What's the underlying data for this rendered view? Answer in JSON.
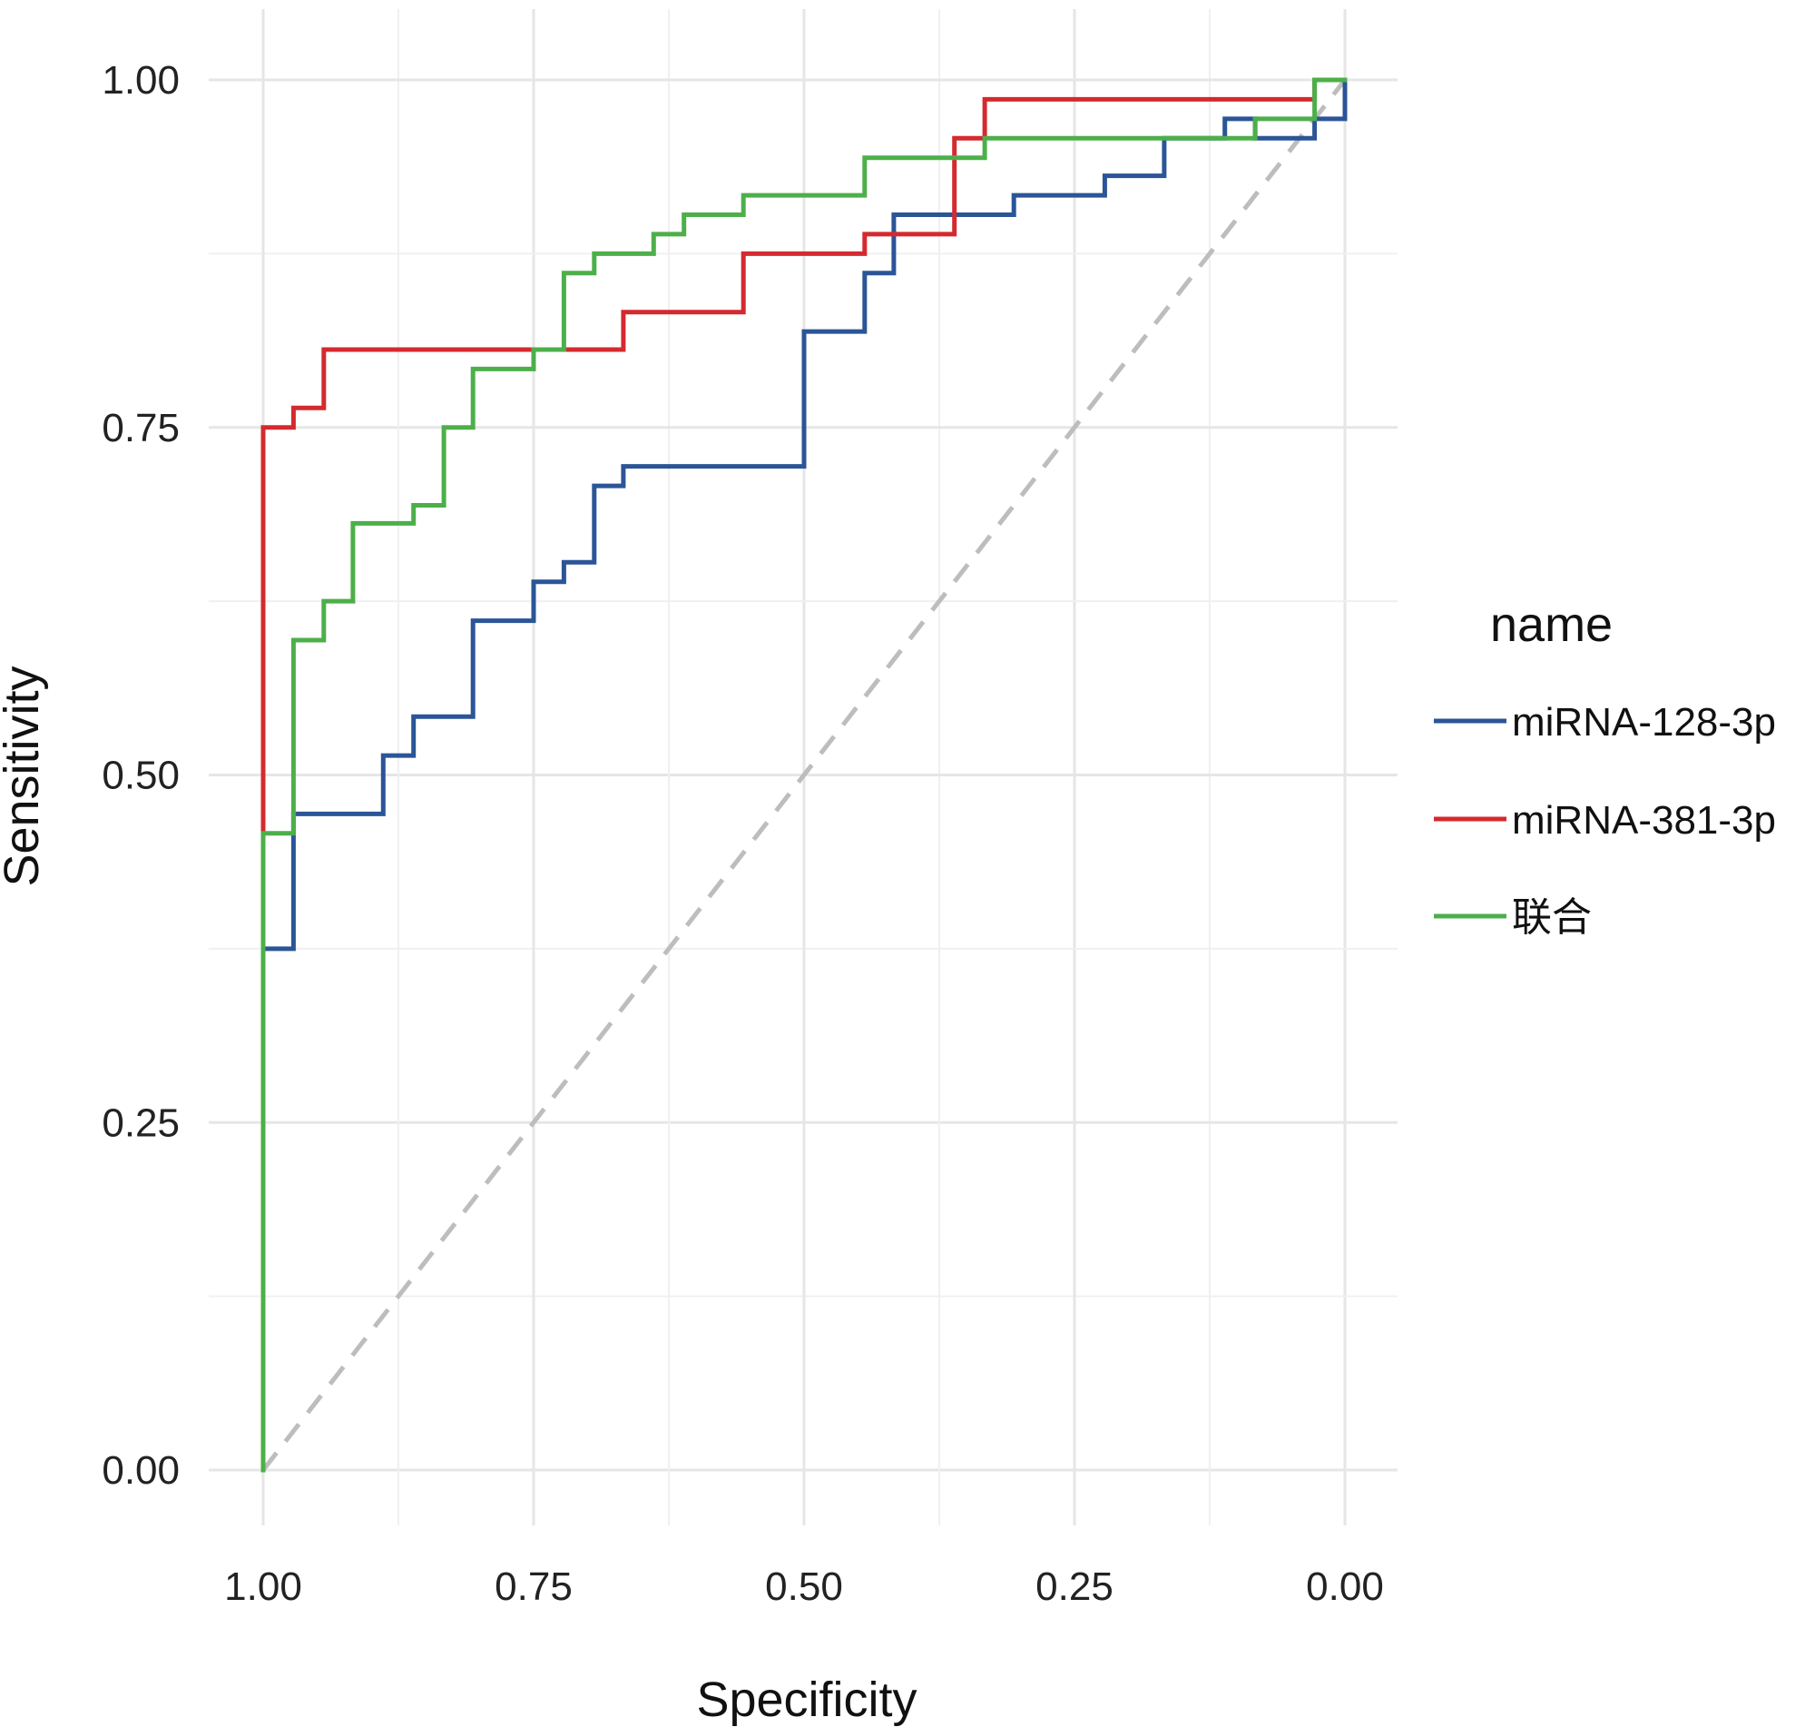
{
  "chart_data": {
    "type": "line",
    "subtype": "roc-step",
    "xlabel": "Specificity",
    "ylabel": "Sensitivity",
    "x_reversed": true,
    "xlim": [
      1.0,
      0.0
    ],
    "ylim": [
      0.0,
      1.0
    ],
    "x_ticks": [
      "1.00",
      "0.75",
      "0.50",
      "0.25",
      "0.00"
    ],
    "y_ticks": [
      "0.00",
      "0.25",
      "0.50",
      "0.75",
      "1.00"
    ],
    "x_tick_values": [
      1.0,
      0.75,
      0.5,
      0.25,
      0.0
    ],
    "y_tick_values": [
      0.0,
      0.25,
      0.5,
      0.75,
      1.0
    ],
    "grid": true,
    "legend": {
      "title": "name",
      "position": "right"
    },
    "reference_line": {
      "from": [
        1.0,
        0.0
      ],
      "to": [
        0.0,
        1.0
      ],
      "style": "dashed",
      "color": "#bdbdbd"
    },
    "series": [
      {
        "name": "miRNA-128-3p",
        "color": "#2b5597",
        "points": [
          [
            1.0,
            0.0
          ],
          [
            1.0,
            0.375
          ],
          [
            0.972,
            0.375
          ],
          [
            0.972,
            0.472
          ],
          [
            0.889,
            0.472
          ],
          [
            0.889,
            0.514
          ],
          [
            0.861,
            0.514
          ],
          [
            0.861,
            0.542
          ],
          [
            0.806,
            0.542
          ],
          [
            0.806,
            0.611
          ],
          [
            0.75,
            0.611
          ],
          [
            0.75,
            0.639
          ],
          [
            0.722,
            0.639
          ],
          [
            0.722,
            0.653
          ],
          [
            0.694,
            0.653
          ],
          [
            0.694,
            0.708
          ],
          [
            0.667,
            0.708
          ],
          [
            0.667,
            0.722
          ],
          [
            0.5,
            0.722
          ],
          [
            0.5,
            0.819
          ],
          [
            0.444,
            0.819
          ],
          [
            0.444,
            0.861
          ],
          [
            0.417,
            0.861
          ],
          [
            0.417,
            0.903
          ],
          [
            0.306,
            0.903
          ],
          [
            0.306,
            0.917
          ],
          [
            0.222,
            0.917
          ],
          [
            0.222,
            0.931
          ],
          [
            0.167,
            0.931
          ],
          [
            0.167,
            0.958
          ],
          [
            0.111,
            0.958
          ],
          [
            0.111,
            0.972
          ],
          [
            0.083,
            0.972
          ],
          [
            0.083,
            0.958
          ],
          [
            0.028,
            0.958
          ],
          [
            0.028,
            0.972
          ],
          [
            0.0,
            0.972
          ],
          [
            0.0,
            1.0
          ]
        ]
      },
      {
        "name": "miRNA-381-3p",
        "color": "#d42a2f",
        "points": [
          [
            1.0,
            0.458
          ],
          [
            1.0,
            0.75
          ],
          [
            0.972,
            0.75
          ],
          [
            0.972,
            0.764
          ],
          [
            0.944,
            0.764
          ],
          [
            0.944,
            0.806
          ],
          [
            0.667,
            0.806
          ],
          [
            0.667,
            0.833
          ],
          [
            0.556,
            0.833
          ],
          [
            0.556,
            0.875
          ],
          [
            0.444,
            0.875
          ],
          [
            0.444,
            0.889
          ],
          [
            0.361,
            0.889
          ],
          [
            0.361,
            0.958
          ],
          [
            0.333,
            0.958
          ],
          [
            0.333,
            0.986
          ],
          [
            0.028,
            0.986
          ],
          [
            0.028,
            1.0
          ],
          [
            0.0,
            1.0
          ]
        ]
      },
      {
        "name": "联合",
        "color": "#4daf4a",
        "points": [
          [
            1.0,
            0.0
          ],
          [
            1.0,
            0.458
          ],
          [
            0.972,
            0.458
          ],
          [
            0.972,
            0.597
          ],
          [
            0.944,
            0.597
          ],
          [
            0.944,
            0.625
          ],
          [
            0.917,
            0.625
          ],
          [
            0.917,
            0.681
          ],
          [
            0.861,
            0.681
          ],
          [
            0.861,
            0.694
          ],
          [
            0.833,
            0.694
          ],
          [
            0.833,
            0.75
          ],
          [
            0.806,
            0.75
          ],
          [
            0.806,
            0.792
          ],
          [
            0.75,
            0.792
          ],
          [
            0.75,
            0.806
          ],
          [
            0.722,
            0.806
          ],
          [
            0.722,
            0.861
          ],
          [
            0.694,
            0.861
          ],
          [
            0.694,
            0.875
          ],
          [
            0.639,
            0.875
          ],
          [
            0.639,
            0.889
          ],
          [
            0.611,
            0.889
          ],
          [
            0.611,
            0.903
          ],
          [
            0.556,
            0.903
          ],
          [
            0.556,
            0.917
          ],
          [
            0.444,
            0.917
          ],
          [
            0.444,
            0.944
          ],
          [
            0.333,
            0.944
          ],
          [
            0.333,
            0.958
          ],
          [
            0.083,
            0.958
          ],
          [
            0.083,
            0.972
          ],
          [
            0.028,
            0.972
          ],
          [
            0.028,
            1.0
          ],
          [
            0.0,
            1.0
          ]
        ]
      }
    ]
  }
}
